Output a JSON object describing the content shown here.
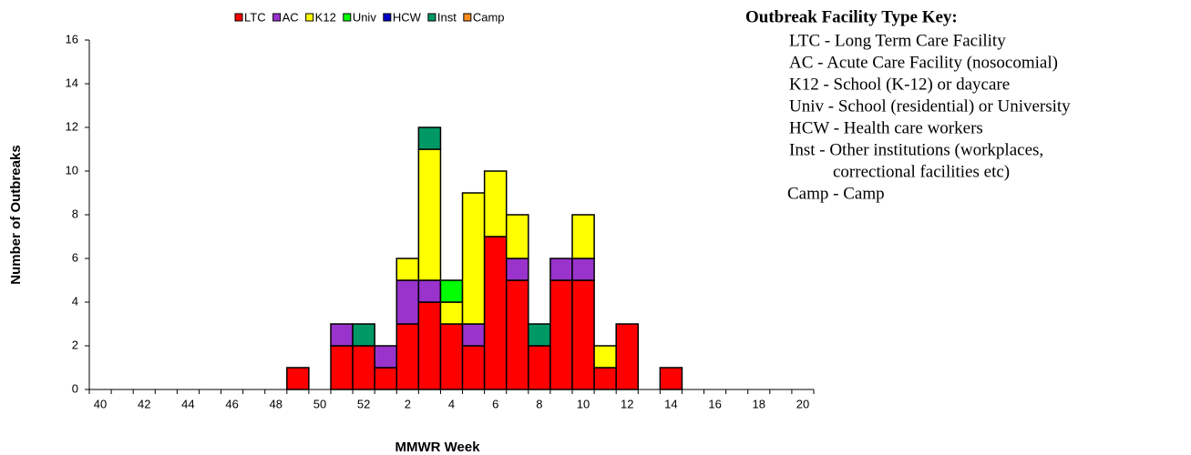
{
  "chart_data": {
    "type": "stacked_bar",
    "x_label": "MMWR Week",
    "y_label": "Number of Outbreaks",
    "categories": [
      "40",
      null,
      "42",
      null,
      "44",
      null,
      "46",
      null,
      "48",
      null,
      "50",
      null,
      "52",
      null,
      "2",
      null,
      "4",
      null,
      "6",
      null,
      "8",
      null,
      "10",
      null,
      "12",
      null,
      "14",
      null,
      "16",
      null,
      "18",
      null,
      "20"
    ],
    "series": [
      {
        "name": "LTC",
        "color": "#ff0000",
        "values": [
          0,
          0,
          0,
          0,
          0,
          0,
          0,
          0,
          0,
          1,
          0,
          2,
          2,
          1,
          3,
          4,
          3,
          2,
          7,
          5,
          2,
          5,
          5,
          1,
          3,
          0,
          1,
          0,
          0,
          0,
          0,
          0,
          0
        ]
      },
      {
        "name": "AC",
        "color": "#9933cc",
        "values": [
          0,
          0,
          0,
          0,
          0,
          0,
          0,
          0,
          0,
          0,
          0,
          1,
          0,
          1,
          2,
          1,
          0,
          1,
          0,
          1,
          0,
          1,
          1,
          0,
          0,
          0,
          0,
          0,
          0,
          0,
          0,
          0,
          0
        ]
      },
      {
        "name": "K12",
        "color": "#ffff00",
        "values": [
          0,
          0,
          0,
          0,
          0,
          0,
          0,
          0,
          0,
          0,
          0,
          0,
          0,
          0,
          1,
          6,
          1,
          6,
          3,
          2,
          0,
          0,
          2,
          1,
          0,
          0,
          0,
          0,
          0,
          0,
          0,
          0,
          0
        ]
      },
      {
        "name": "Univ",
        "color": "#00ff00",
        "values": [
          0,
          0,
          0,
          0,
          0,
          0,
          0,
          0,
          0,
          0,
          0,
          0,
          0,
          0,
          0,
          0,
          1,
          0,
          0,
          0,
          0,
          0,
          0,
          0,
          0,
          0,
          0,
          0,
          0,
          0,
          0,
          0,
          0
        ]
      },
      {
        "name": "HCW",
        "color": "#0000cc",
        "values": [
          0,
          0,
          0,
          0,
          0,
          0,
          0,
          0,
          0,
          0,
          0,
          0,
          0,
          0,
          0,
          0,
          0,
          0,
          0,
          0,
          0,
          0,
          0,
          0,
          0,
          0,
          0,
          0,
          0,
          0,
          0,
          0,
          0
        ]
      },
      {
        "name": "Inst",
        "color": "#009966",
        "values": [
          0,
          0,
          0,
          0,
          0,
          0,
          0,
          0,
          0,
          0,
          0,
          0,
          1,
          0,
          0,
          1,
          0,
          0,
          0,
          0,
          1,
          0,
          0,
          0,
          0,
          0,
          0,
          0,
          0,
          0,
          0,
          0,
          0
        ]
      },
      {
        "name": "Camp",
        "color": "#ff8c1a",
        "values": [
          0,
          0,
          0,
          0,
          0,
          0,
          0,
          0,
          0,
          0,
          0,
          0,
          0,
          0,
          0,
          0,
          0,
          0,
          0,
          0,
          0,
          0,
          0,
          0,
          0,
          0,
          0,
          0,
          0,
          0,
          0,
          0,
          0
        ]
      }
    ],
    "ylim": [
      0,
      16
    ],
    "yticks": [
      0,
      2,
      4,
      6,
      8,
      10,
      12,
      14,
      16
    ],
    "grid": false,
    "legend": "top"
  },
  "key": {
    "title": "Outbreak Facility Type Key:",
    "items": [
      "LTC - Long Term Care Facility",
      "AC - Acute Care Facility (nosocomial)",
      "K12 - School (K-12) or daycare",
      "Univ - School (residential) or University",
      "HCW - Health care workers",
      "Inst - Other institutions (workplaces,",
      "correctional facilities etc)",
      "Camp - Camp"
    ]
  }
}
